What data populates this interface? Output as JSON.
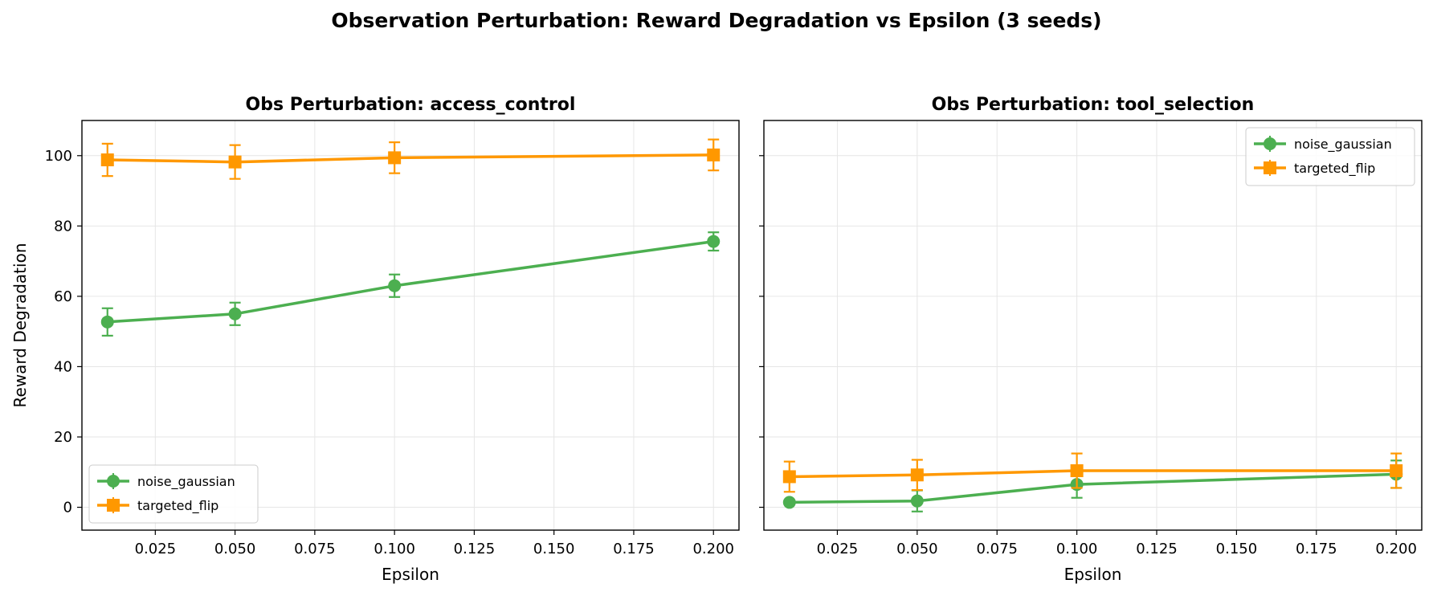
{
  "figure": {
    "suptitle": "Observation Perturbation: Reward Degradation vs Epsilon (3 seeds)"
  },
  "colors": {
    "noise_gaussian": "#4caf50",
    "targeted_flip": "#ff9800",
    "grid": "#e6e6e6",
    "axis": "#000000"
  },
  "chart_data": [
    {
      "type": "line",
      "title": "Obs Perturbation: access_control",
      "xlabel": "Epsilon",
      "ylabel": "Reward Degradation",
      "xlim": [
        0.002,
        0.208
      ],
      "ylim": [
        -6.5,
        110
      ],
      "xticks": [
        0.025,
        0.05,
        0.075,
        0.1,
        0.125,
        0.15,
        0.175,
        0.2
      ],
      "xtick_labels": [
        "0.025",
        "0.050",
        "0.075",
        "0.100",
        "0.125",
        "0.150",
        "0.175",
        "0.200"
      ],
      "yticks": [
        0,
        20,
        40,
        60,
        80,
        100
      ],
      "ytick_labels": [
        "0",
        "20",
        "40",
        "60",
        "80",
        "100"
      ],
      "grid": true,
      "legend_position": "lower-left",
      "x": [
        0.01,
        0.05,
        0.1,
        0.2
      ],
      "series": [
        {
          "name": "noise_gaussian",
          "marker": "circle",
          "y": [
            52.7,
            55.0,
            63.0,
            75.6
          ],
          "err": [
            3.9,
            3.2,
            3.2,
            2.6
          ]
        },
        {
          "name": "targeted_flip",
          "marker": "square",
          "y": [
            98.8,
            98.2,
            99.4,
            100.2
          ],
          "err": [
            4.6,
            4.8,
            4.4,
            4.4
          ]
        }
      ]
    },
    {
      "type": "line",
      "title": "Obs Perturbation: tool_selection",
      "xlabel": "Epsilon",
      "ylabel": "",
      "xlim": [
        0.002,
        0.208
      ],
      "ylim": [
        -6.5,
        110
      ],
      "xticks": [
        0.025,
        0.05,
        0.075,
        0.1,
        0.125,
        0.15,
        0.175,
        0.2
      ],
      "xtick_labels": [
        "0.025",
        "0.050",
        "0.075",
        "0.100",
        "0.125",
        "0.150",
        "0.175",
        "0.200"
      ],
      "yticks": [
        0,
        20,
        40,
        60,
        80,
        100
      ],
      "ytick_labels": [],
      "grid": true,
      "legend_position": "upper-right",
      "x": [
        0.01,
        0.05,
        0.1,
        0.2
      ],
      "series": [
        {
          "name": "noise_gaussian",
          "marker": "circle",
          "y": [
            1.4,
            1.8,
            6.5,
            9.4
          ],
          "err": [
            0.5,
            3.0,
            3.8,
            3.9
          ]
        },
        {
          "name": "targeted_flip",
          "marker": "square",
          "y": [
            8.7,
            9.2,
            10.4,
            10.4
          ],
          "err": [
            4.3,
            4.3,
            4.9,
            4.9
          ]
        }
      ]
    }
  ]
}
